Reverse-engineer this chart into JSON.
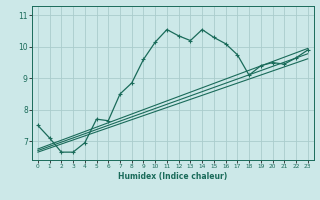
{
  "xlabel": "Humidex (Indice chaleur)",
  "ylabel": "",
  "bg_color": "#cce8e8",
  "grid_color": "#aacccc",
  "line_color": "#1a6b5a",
  "xlim": [
    -0.5,
    23.5
  ],
  "ylim": [
    6.4,
    11.3
  ],
  "xticks": [
    0,
    1,
    2,
    3,
    4,
    5,
    6,
    7,
    8,
    9,
    10,
    11,
    12,
    13,
    14,
    15,
    16,
    17,
    18,
    19,
    20,
    21,
    22,
    23
  ],
  "yticks": [
    7,
    8,
    9,
    10,
    11
  ],
  "series1_x": [
    0,
    1,
    2,
    3,
    4,
    5,
    6,
    7,
    8,
    9,
    10,
    11,
    12,
    13,
    14,
    15,
    16,
    17,
    18,
    19,
    20,
    21,
    22,
    23
  ],
  "series1_y": [
    7.5,
    7.1,
    6.65,
    6.65,
    6.95,
    7.7,
    7.65,
    8.5,
    8.85,
    9.6,
    10.15,
    10.55,
    10.35,
    10.2,
    10.55,
    10.3,
    10.1,
    9.75,
    9.1,
    9.4,
    9.5,
    9.45,
    9.65,
    9.9
  ],
  "series2_x": [
    0,
    23
  ],
  "series2_y": [
    6.75,
    9.95
  ],
  "series3_x": [
    0,
    23
  ],
  "series3_y": [
    6.7,
    9.78
  ],
  "series4_x": [
    0,
    23
  ],
  "series4_y": [
    6.65,
    9.62
  ]
}
